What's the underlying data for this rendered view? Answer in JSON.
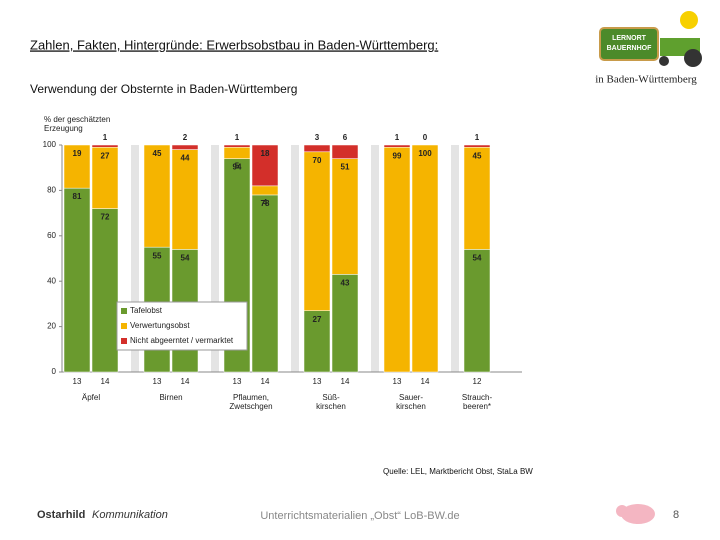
{
  "header": {
    "title": "Zahlen, Fakten, Hintergründe: Erwerbsobstbau in Baden-Württemberg:",
    "subtitle": "Verwendung der Obsternte in Baden-Württemberg"
  },
  "logo": {
    "sign": [
      "LERNORT",
      "BAUERNHOF"
    ],
    "caption": "in Baden-Württemberg"
  },
  "chart_data": {
    "type": "bar",
    "stacked": true,
    "y_label": [
      "% der geschätzten",
      "Erzeugung"
    ],
    "categories": [
      "13",
      "14",
      "13",
      "14",
      "13",
      "14",
      "13",
      "14",
      "13",
      "14",
      "12"
    ],
    "groups": [
      [
        "Äpfel"
      ],
      [
        "Birnen"
      ],
      [
        "Pflaumen,",
        "Zwetschgen"
      ],
      [
        "Süß-",
        "kirschen"
      ],
      [
        "Sauer-",
        "kirschen"
      ],
      [
        "Strauch-",
        "beeren*"
      ]
    ],
    "series": [
      {
        "name": "Tafelobst",
        "color": "#6a9a2e",
        "values": [
          81,
          72,
          55,
          54,
          94,
          78,
          27,
          43,
          null,
          null,
          54
        ]
      },
      {
        "name": "Verwertungsobst",
        "color": "#f5b400",
        "values": [
          19,
          27,
          45,
          44,
          5,
          4,
          70,
          51,
          99,
          100,
          45
        ]
      },
      {
        "name": "Nicht abgeerntet / vermarktet",
        "color": "#d32f2a",
        "values": [
          null,
          1,
          null,
          2,
          1,
          18,
          3,
          6,
          1,
          0,
          1
        ]
      }
    ],
    "ylim": [
      0,
      100
    ],
    "yticks": [
      0,
      20,
      40,
      60,
      80,
      100
    ],
    "legend": "lower left"
  },
  "source": "Quelle: LEL, Marktbericht Obst, StaLa BW",
  "footer": {
    "brand": [
      "Ostarhild",
      "Kommunikation"
    ],
    "center": "Unterrichtsmaterialien „Obst“ LoB-BW.de",
    "page": 8
  }
}
